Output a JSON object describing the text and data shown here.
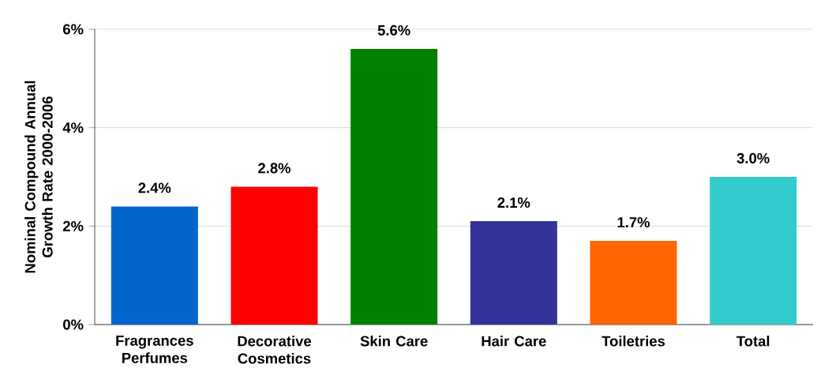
{
  "chart_data": {
    "type": "bar",
    "ylabel": "Nominal Compound Annual Growth Rate 2000-2006",
    "categories": [
      "Fragrances Perfumes",
      "Decorative Cosmetics",
      "Skin Care",
      "Hair Care",
      "Toiletries",
      "Total"
    ],
    "values": [
      2.4,
      2.8,
      5.6,
      2.1,
      1.7,
      3.0
    ],
    "value_labels": [
      "2.4%",
      "2.8%",
      "5.6%",
      "2.1%",
      "1.7%",
      "3.0%"
    ],
    "colors": [
      "#0066cc",
      "#ff0000",
      "#008000",
      "#333399",
      "#ff6600",
      "#33cccc"
    ],
    "ylim": [
      0,
      6
    ],
    "yticks": [
      {
        "value": 0,
        "label": "0%"
      },
      {
        "value": 2,
        "label": "2%"
      },
      {
        "value": 4,
        "label": "4%"
      },
      {
        "value": 6,
        "label": "6%"
      }
    ],
    "grid": "y"
  }
}
